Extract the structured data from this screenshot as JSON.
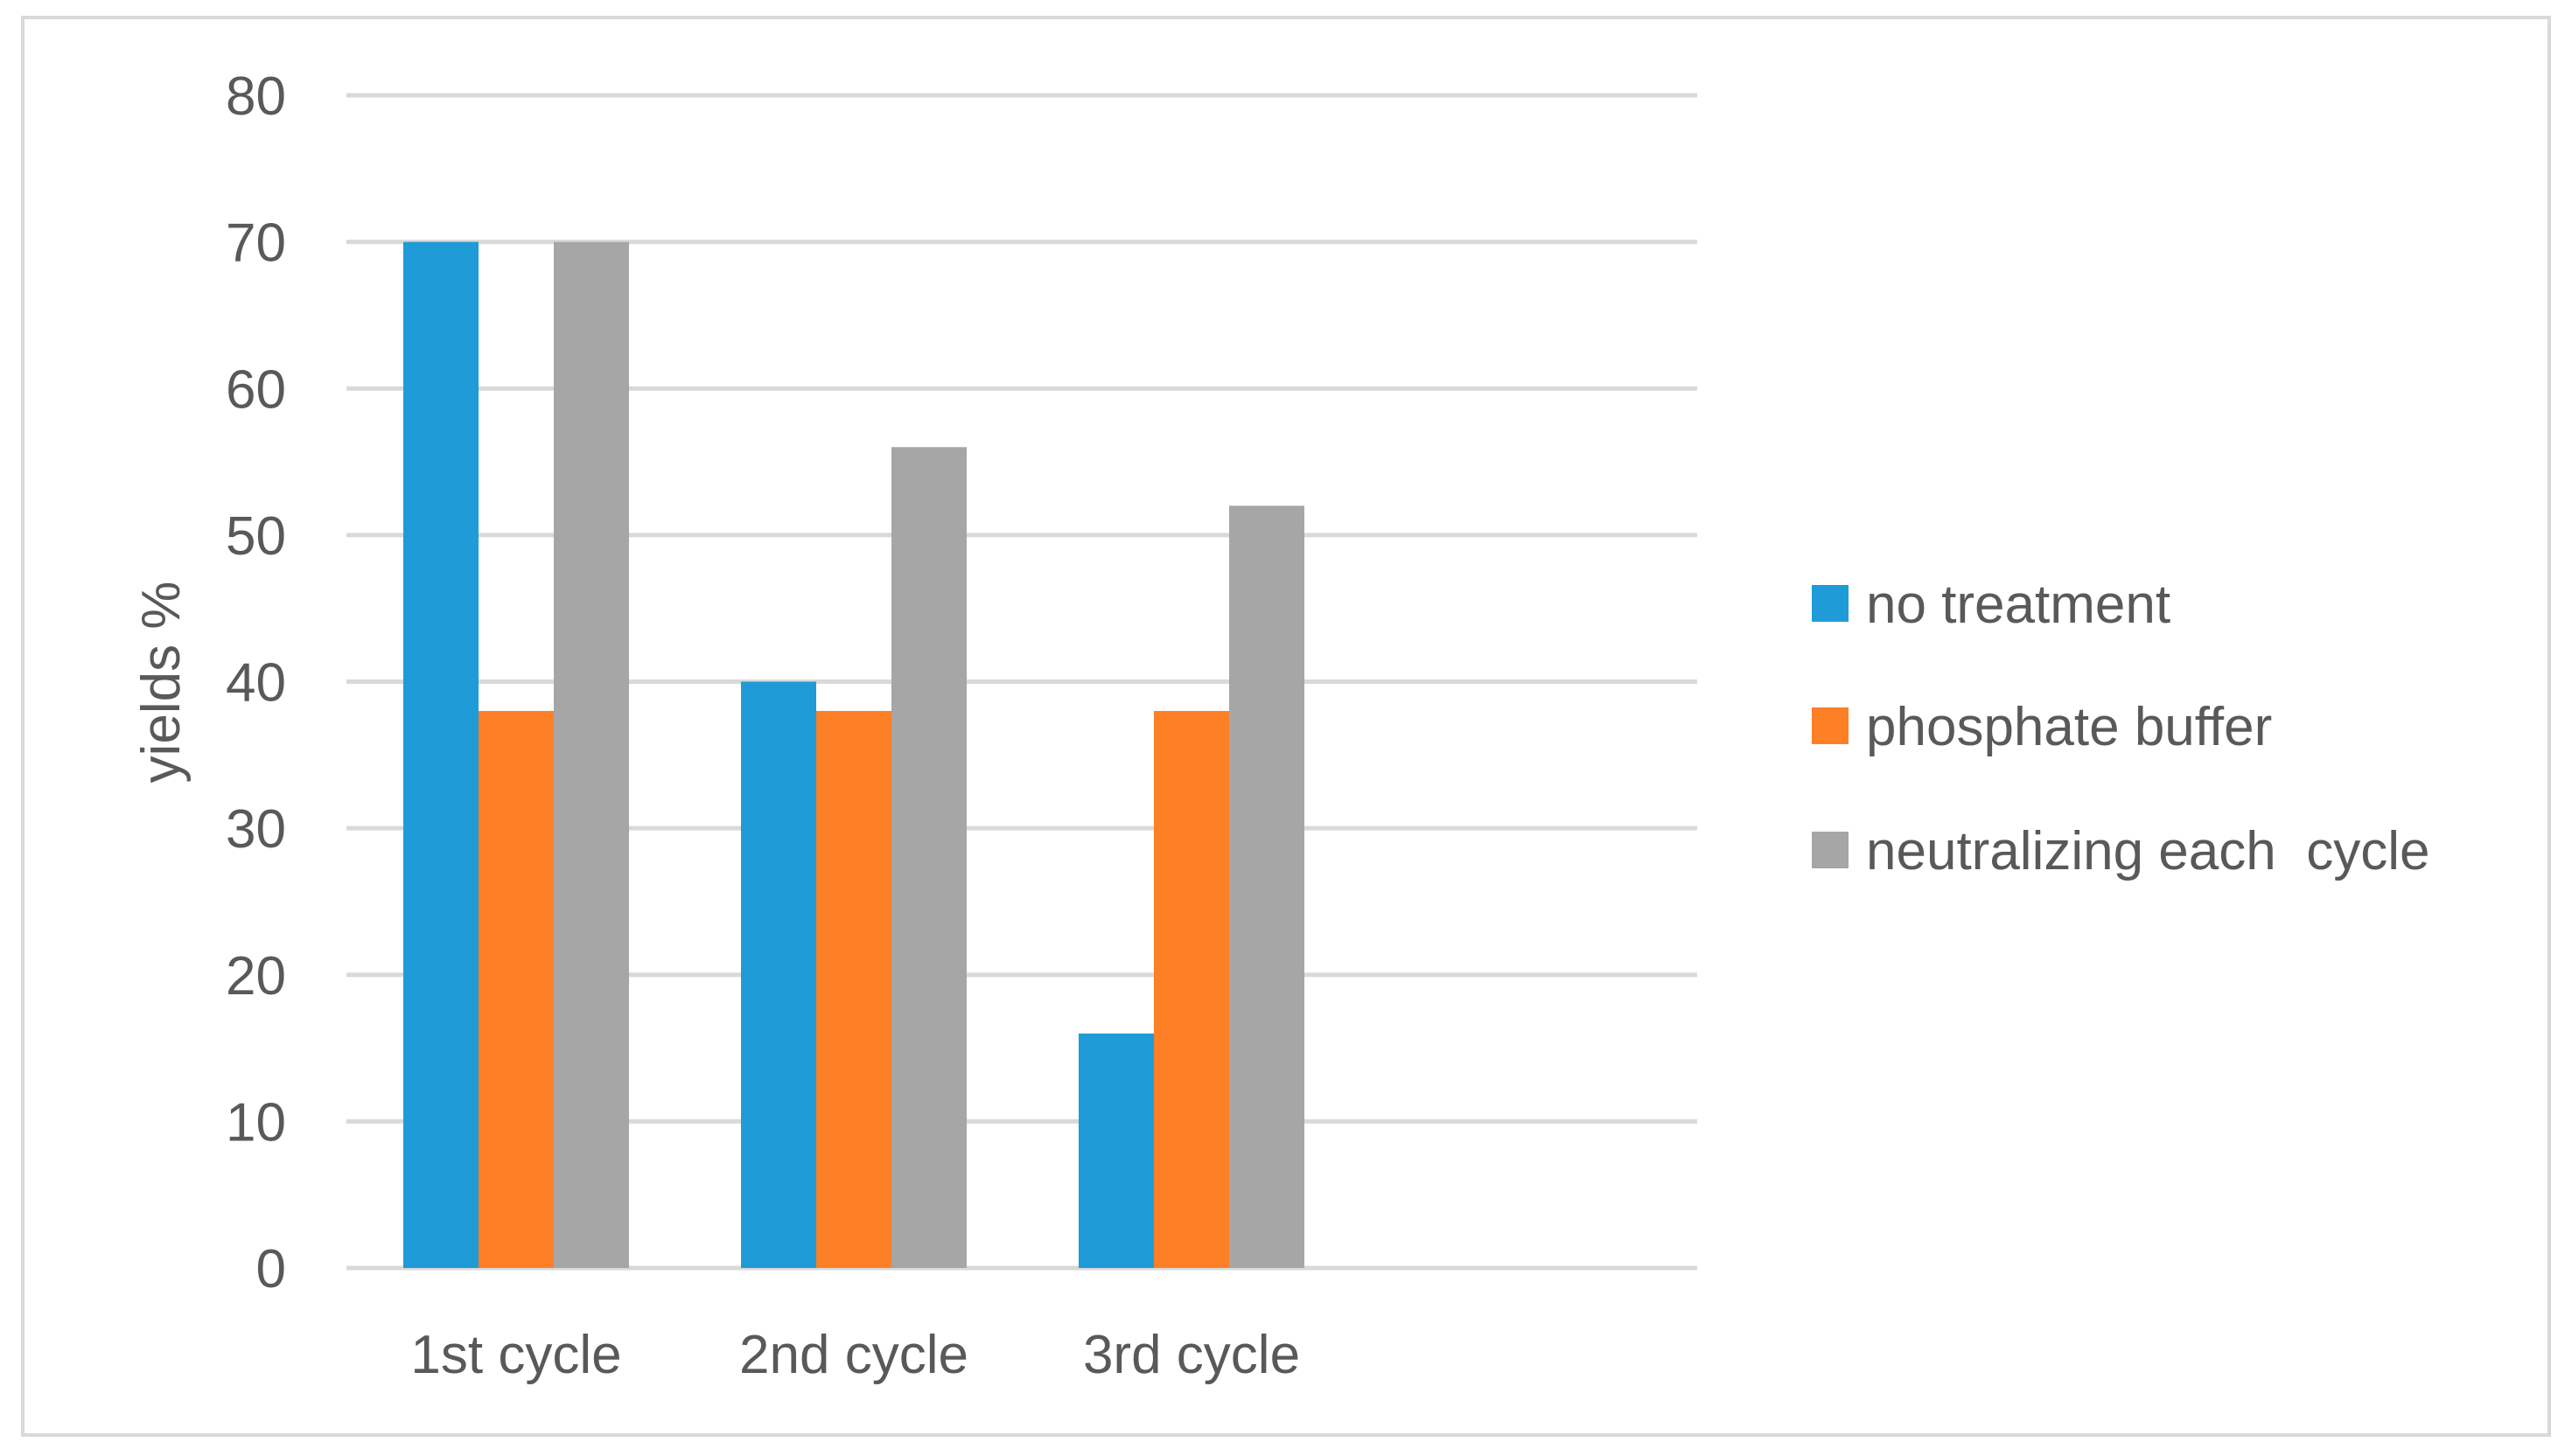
{
  "chart_data": {
    "type": "bar",
    "title": "",
    "xlabel": "",
    "ylabel": "yields %",
    "ylim": [
      0,
      80
    ],
    "yticks": [
      0,
      10,
      20,
      30,
      40,
      50,
      60,
      70,
      80
    ],
    "grid": true,
    "legend_position": "right",
    "categories": [
      "1st cycle",
      "2nd cycle",
      "3rd cycle"
    ],
    "series": [
      {
        "name": "no treatment",
        "color": "#1f9bd7",
        "values": [
          70,
          40,
          16
        ]
      },
      {
        "name": "phosphate buffer",
        "color": "#fd7f26",
        "values": [
          38,
          38,
          38
        ]
      },
      {
        "name": "neutralizing each  cycle",
        "color": "#a6a6a6",
        "values": [
          70,
          56,
          52
        ]
      }
    ],
    "colors": {
      "grid": "#d9d9d9",
      "text": "#595959",
      "frame": "#d9d9d9"
    }
  }
}
